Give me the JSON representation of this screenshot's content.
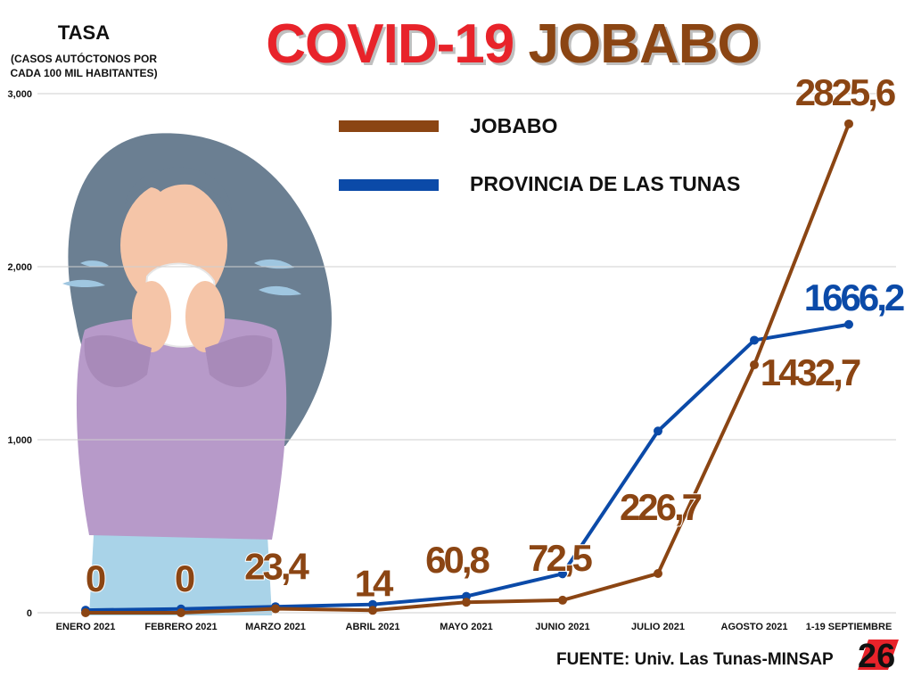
{
  "header": {
    "title_part1": "COVID-19",
    "title_part2": "JOBABO",
    "y_title": "TASA",
    "y_subtitle": "(CASOS AUTÓCTONOS POR CADA 100 MIL HABITANTES)"
  },
  "footer": {
    "source": "FUENTE: Univ. Las Tunas-MINSAP",
    "logo_text": "26"
  },
  "colors": {
    "jobabo": "#8b4513",
    "provincia": "#0b4aa8",
    "title_red": "#e8232a",
    "grid": "#cfcfcf"
  },
  "chart_data": {
    "type": "line",
    "categories": [
      "ENERO 2021",
      "FEBRERO 2021",
      "MARZO 2021",
      "ABRIL 2021",
      "MAYO 2021",
      "JUNIO 2021",
      "JULIO 2021",
      "AGOSTO 2021",
      "1-19 SEPTIEMBRE"
    ],
    "ylim": [
      0,
      3000
    ],
    "yticks": [
      0,
      1000,
      2000,
      3000
    ],
    "ytick_labels": [
      "0",
      "1,000",
      "2,000",
      "3,000"
    ],
    "grid": true,
    "legend_position": "top-center",
    "series": [
      {
        "name": "JOBABO",
        "color": "#8b4513",
        "values": [
          0,
          0,
          23.4,
          14,
          60.8,
          72.5,
          226.7,
          1432.7,
          2825.6
        ],
        "labels": [
          "0",
          "0",
          "23,4",
          "14",
          "60,8",
          "72,5",
          "226,7",
          "1432,7",
          "2825,6"
        ]
      },
      {
        "name": "PROVINCIA DE LAS TUNAS",
        "color": "#0b4aa8",
        "values": [
          15,
          22,
          35,
          48,
          95,
          225,
          1050,
          1575,
          1666.2
        ],
        "labels": [
          "",
          "",
          "",
          "",
          "",
          "",
          "",
          "",
          "1666,2"
        ]
      }
    ]
  }
}
